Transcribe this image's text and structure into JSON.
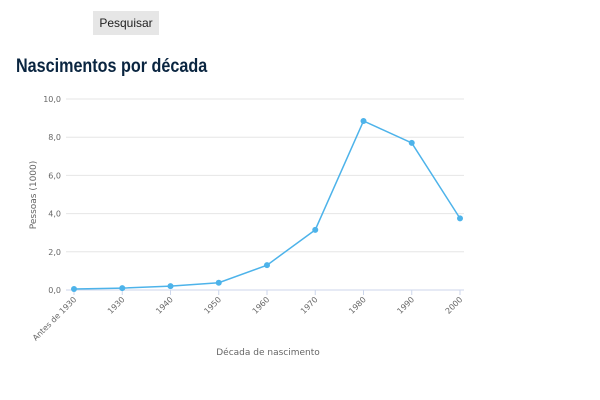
{
  "search_button": "Pesquisar",
  "heading": "Nascimentos por década",
  "chart_data": {
    "type": "line",
    "categories": [
      "Antes de 1930",
      "1930",
      "1940",
      "1950",
      "1960",
      "1970",
      "1980",
      "1990",
      "2000"
    ],
    "series": [
      {
        "values": [
          0.05,
          0.1,
          0.2,
          0.38,
          1.3,
          3.15,
          8.85,
          7.7,
          3.75
        ]
      }
    ],
    "xlabel": "Década de nascimento",
    "ylabel": "Pessoas (1000)",
    "ylim": [
      0,
      10
    ],
    "yticks": [
      "0,0",
      "2,0",
      "4,0",
      "6,0",
      "8,0",
      "10,0"
    ],
    "grid": true,
    "color": "#4db3ea"
  }
}
